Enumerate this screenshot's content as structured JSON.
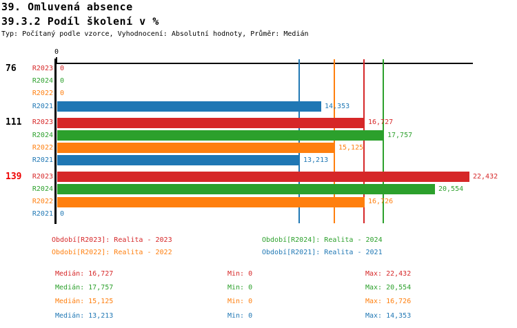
{
  "header": {
    "title_line1": "39. Omluvená absence",
    "title_line2": "39.3.2 Podíl školení v %",
    "meta": "Typ: Počítaný podle vzorce, Vyhodnocení: Absolutní hodnoty, Průměr: Medián"
  },
  "colors": {
    "R2023": "#d62728",
    "R2024": "#2ca02c",
    "R2022": "#ff7f0e",
    "R2021": "#1f77b4",
    "axis": "#000000",
    "highlight_group": "#ee0000"
  },
  "chart_data": {
    "type": "bar",
    "orientation": "horizontal",
    "title": "39.3.2 Podíl školení v %",
    "xlim": [
      0,
      22650
    ],
    "x_ticks": [
      {
        "value": 0,
        "label": "0"
      }
    ],
    "grid": false,
    "categories": [
      "76",
      "111",
      "139"
    ],
    "category_colors": [
      "#000000",
      "#000000",
      "#ee0000"
    ],
    "series": [
      {
        "name": "R2023",
        "color": "#d62728",
        "values": [
          0,
          16727,
          22432
        ],
        "labels": [
          "0",
          "16,727",
          "22,432"
        ],
        "median": 16727
      },
      {
        "name": "R2024",
        "color": "#2ca02c",
        "values": [
          0,
          17757,
          20554
        ],
        "labels": [
          "0",
          "17,757",
          "20,554"
        ],
        "median": 17757
      },
      {
        "name": "R2022",
        "color": "#ff7f0e",
        "values": [
          0,
          15125,
          16726
        ],
        "labels": [
          "0",
          "15,125",
          "16,726"
        ],
        "median": 15125
      },
      {
        "name": "R2021",
        "color": "#1f77b4",
        "values": [
          14353,
          13213,
          0
        ],
        "labels": [
          "14,353",
          "13,213",
          "0"
        ],
        "median": 13213
      }
    ],
    "median_lines": [
      {
        "series": "R2021",
        "value": 13213
      },
      {
        "series": "R2022",
        "value": 15125
      },
      {
        "series": "R2023",
        "value": 16727
      },
      {
        "series": "R2024",
        "value": 17757
      }
    ],
    "legend_position": "bottom"
  },
  "legend": {
    "items": [
      {
        "series": "R2023",
        "label": "Období[R2023]: Realita - 2023",
        "col": 0,
        "row": 0
      },
      {
        "series": "R2024",
        "label": "Období[R2024]: Realita - 2024",
        "col": 1,
        "row": 0
      },
      {
        "series": "R2022",
        "label": "Období[R2022]: Realita - 2022",
        "col": 0,
        "row": 1
      },
      {
        "series": "R2021",
        "label": "Období[R2021]: Realita - 2021",
        "col": 1,
        "row": 1
      }
    ]
  },
  "stats": {
    "rows": [
      {
        "series": "R2023",
        "median": "Medián: 16,727",
        "min": "Min: 0",
        "max": "Max: 22,432"
      },
      {
        "series": "R2024",
        "median": "Medián: 17,757",
        "min": "Min: 0",
        "max": "Max: 20,554"
      },
      {
        "series": "R2022",
        "median": "Medián: 15,125",
        "min": "Min: 0",
        "max": "Max: 16,726"
      },
      {
        "series": "R2021",
        "median": "Medián: 13,213",
        "min": "Min: 0",
        "max": "Max: 14,353"
      }
    ]
  }
}
